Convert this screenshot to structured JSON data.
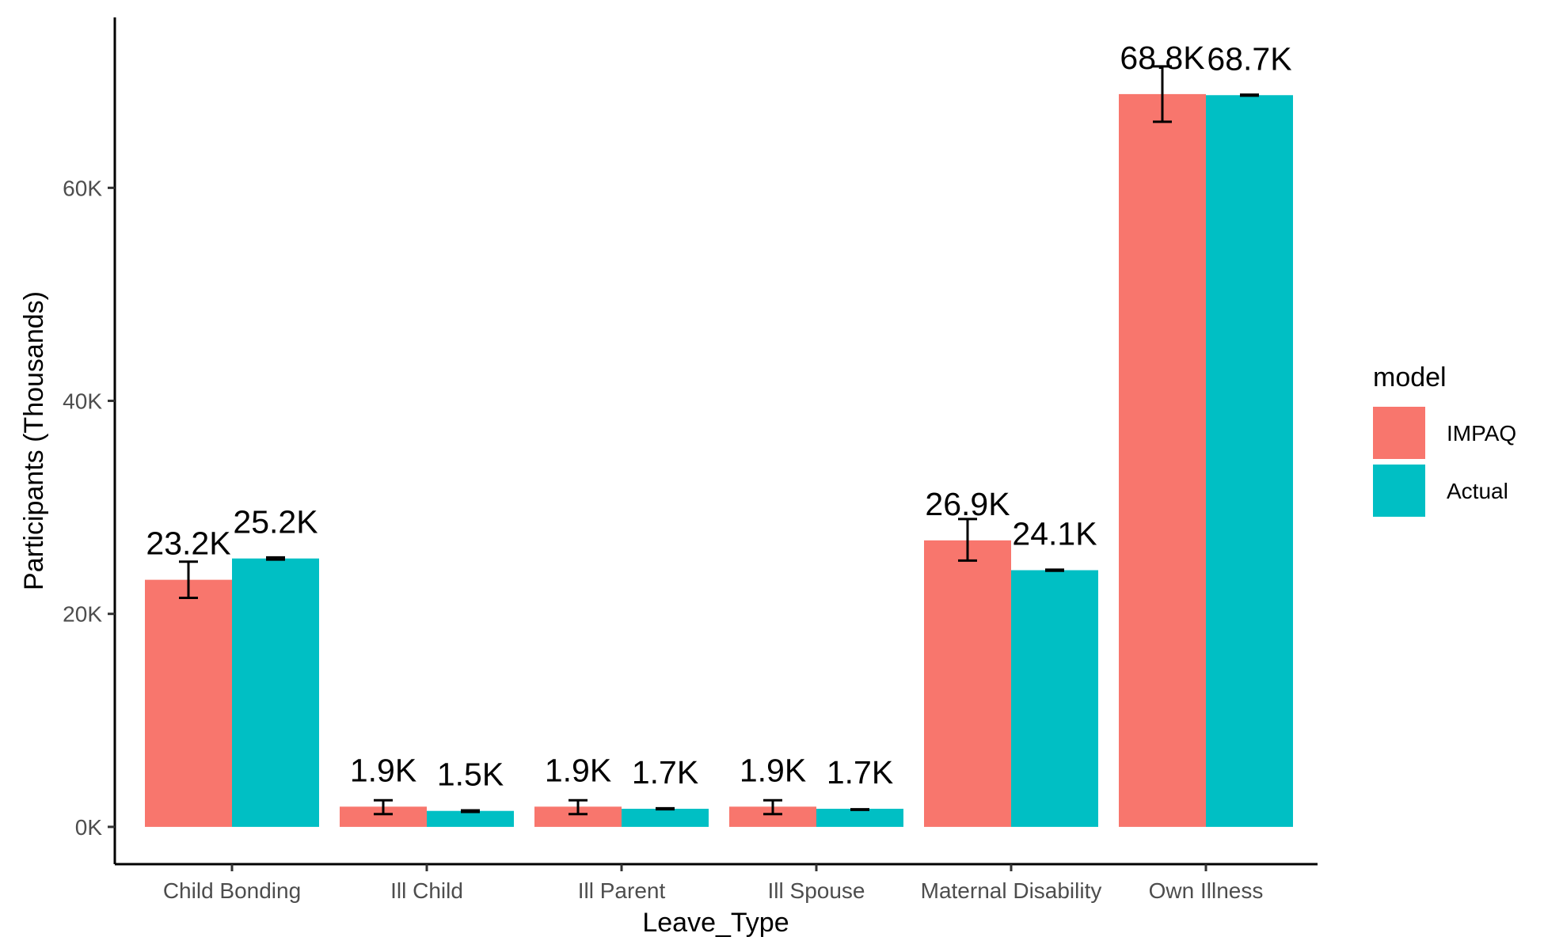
{
  "chart_data": {
    "type": "bar",
    "xlabel": "Leave_Type",
    "ylabel": "Participants (Thousands)",
    "categories": [
      "Child Bonding",
      "Ill Child",
      "Ill Parent",
      "Ill Spouse",
      "Maternal Disability",
      "Own Illness"
    ],
    "yticks": [
      0,
      20000,
      40000,
      60000
    ],
    "ytick_labels": [
      "0K",
      "20K",
      "40K",
      "60K"
    ],
    "ylim": [
      -3500,
      76000
    ],
    "legend": {
      "title": "model",
      "placement": "right"
    },
    "series": [
      {
        "name": "IMPAQ",
        "color": "#F8766D",
        "values": [
          23200,
          1900,
          1900,
          1900,
          26900,
          68800
        ],
        "labels": [
          "23.2K",
          "1.9K",
          "1.9K",
          "1.9K",
          "26.9K",
          "68.8K"
        ],
        "error_low": [
          21500,
          1200,
          1200,
          1200,
          25000,
          66200
        ],
        "error_high": [
          24900,
          2500,
          2500,
          2500,
          28900,
          71400
        ]
      },
      {
        "name": "Actual",
        "color": "#00BFC4",
        "values": [
          25200,
          1500,
          1700,
          1700,
          24100,
          68700
        ],
        "labels": [
          "25.2K",
          "1.5K",
          "1.7K",
          "1.7K",
          "24.1K",
          "68.7K"
        ],
        "error_low": [
          25100,
          1400,
          1650,
          1600,
          24050,
          68650
        ],
        "error_high": [
          25300,
          1550,
          1750,
          1650,
          24150,
          68750
        ]
      }
    ]
  }
}
